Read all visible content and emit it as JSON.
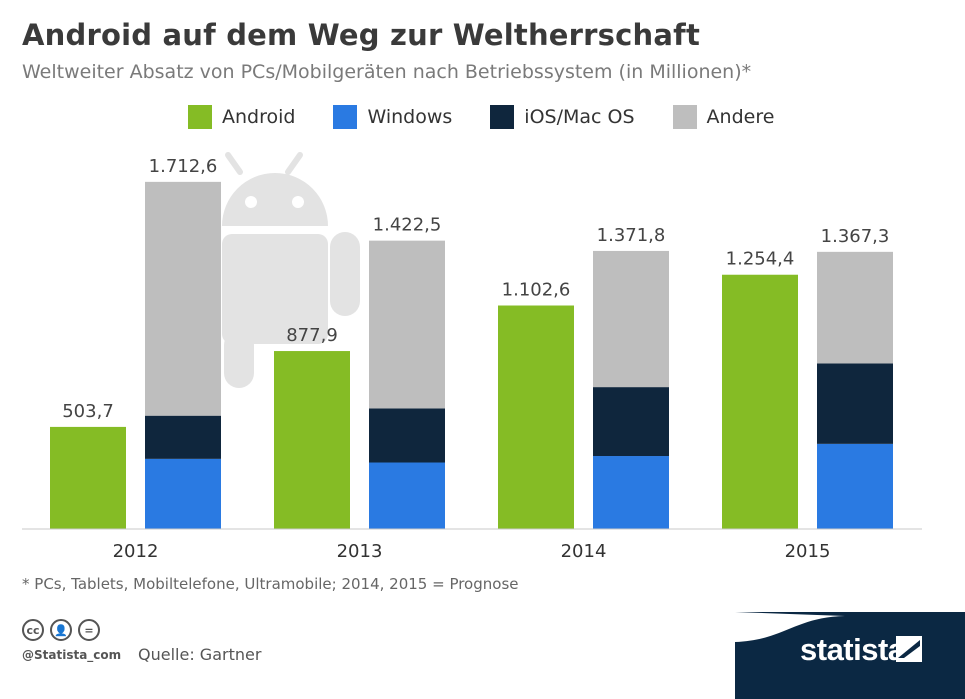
{
  "header": {
    "title": "Android auf dem Weg zur Weltherrschaft",
    "subtitle": "Weltweiter Absatz von PCs/Mobilgeräten nach Betriebssystem (in Millionen)*"
  },
  "footer": {
    "footnote": "* PCs, Tablets, Mobiltelefone, Ultramobile; 2014, 2015 = Prognose",
    "handle": "@Statista_com",
    "source": "Quelle: Gartner",
    "brand": "statista",
    "cc_icons": [
      "cc-icon",
      "by-icon",
      "nd-icon"
    ]
  },
  "colors": {
    "android": "#85bc25",
    "windows": "#2a7ae2",
    "ios": "#0f263d",
    "andere": "#bebebe",
    "mascot": "#e3e3e3",
    "brand_band": "#0b2843"
  },
  "chart_data": {
    "type": "bar",
    "categories": [
      "2012",
      "2013",
      "2014",
      "2015"
    ],
    "legend": [
      "Android",
      "Windows",
      "iOS/Mac OS",
      "Andere"
    ],
    "android": {
      "name": "Android",
      "values": [
        503.7,
        877.9,
        1102.6,
        1254.4
      ],
      "labels": [
        "503,7",
        "877,9",
        "1.102,6",
        "1.254,4"
      ]
    },
    "stacked_totals": {
      "values": [
        1712.6,
        1422.5,
        1371.8,
        1367.3
      ],
      "labels": [
        "1.712,6",
        "1.422,5",
        "1.371,8",
        "1.367,3"
      ]
    },
    "stacked_series": [
      {
        "name": "Windows",
        "values": [
          346,
          328,
          360,
          420
        ]
      },
      {
        "name": "iOS/Mac OS",
        "values": [
          213,
          267,
          340,
          397
        ]
      },
      {
        "name": "Andere",
        "values": [
          1153.6,
          827.5,
          671.8,
          550.3
        ]
      }
    ],
    "ylim": [
      0,
      1800
    ],
    "legend_position": "top",
    "grid": false
  }
}
